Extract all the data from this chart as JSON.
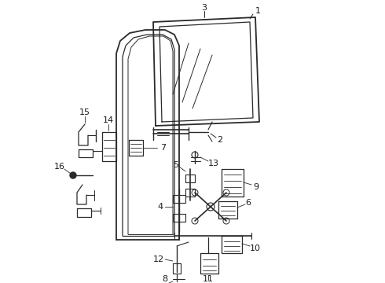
{
  "bg_color": "#ffffff",
  "line_color": "#2a2a2a",
  "label_color": "#1a1a1a",
  "figsize": [
    4.9,
    3.6
  ],
  "dpi": 100,
  "xlim": [
    0,
    490
  ],
  "ylim": [
    0,
    360
  ]
}
